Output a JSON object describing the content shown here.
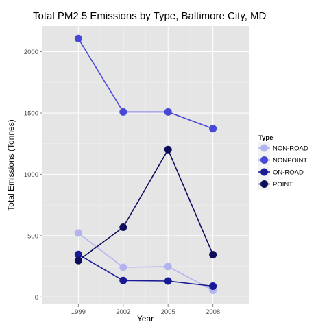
{
  "chart_data": {
    "type": "line",
    "title": "Total PM2.5 Emissions by Type, Baltimore City, MD",
    "xlabel": "Year",
    "ylabel": "Total Emissions (Tonnes)",
    "x": [
      "1999",
      "2002",
      "2005",
      "2008"
    ],
    "x_values": [
      1999,
      2002,
      2005,
      2008
    ],
    "yticks": [
      0,
      500,
      1000,
      1500,
      2000
    ],
    "ylim": [
      -60,
      2210
    ],
    "grid": true,
    "legend": {
      "title": "Type",
      "position": "right"
    },
    "series": [
      {
        "name": "NON-ROAD",
        "color": "#b3b3ef",
        "values": [
          522,
          242,
          248,
          55
        ]
      },
      {
        "name": "NONPOINT",
        "color": "#4848d6",
        "values": [
          2108,
          1509,
          1509,
          1373
        ]
      },
      {
        "name": "ON-ROAD",
        "color": "#1a1a96",
        "values": [
          347,
          134,
          130,
          88
        ]
      },
      {
        "name": "POINT",
        "color": "#0d0d5c",
        "values": [
          297,
          569,
          1202,
          345
        ]
      }
    ]
  }
}
